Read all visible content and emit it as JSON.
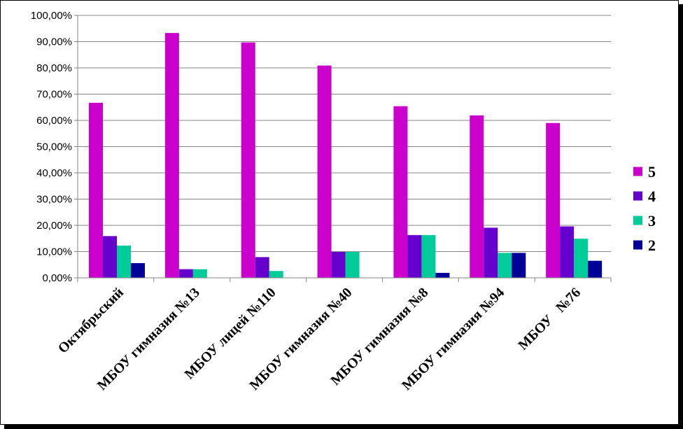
{
  "chart_data": {
    "type": "bar",
    "title": "",
    "xlabel": "",
    "ylabel": "",
    "ylim": [
      0,
      100
    ],
    "grid": true,
    "legend_position": "right",
    "y_ticks": [
      "0,00%",
      "10,00%",
      "20,00%",
      "30,00%",
      "40,00%",
      "50,00%",
      "60,00%",
      "70,00%",
      "80,00%",
      "90,00%",
      "100,00%"
    ],
    "categories": [
      "Октябрьский",
      "МБОУ гимназия №13",
      "МБОУ лицей №110",
      "МБОУ гимназия №40",
      "МБОУ гимназия №8",
      "МБОУ гимназия №94",
      "МБОУ   №76"
    ],
    "series": [
      {
        "name": "5",
        "color": "#cc00cc",
        "values": [
          66.7,
          93.3,
          89.7,
          80.9,
          65.4,
          61.9,
          59.0
        ]
      },
      {
        "name": "4",
        "color": "#6600cc",
        "values": [
          15.9,
          3.3,
          7.9,
          9.9,
          16.3,
          19.1,
          19.6
        ]
      },
      {
        "name": "3",
        "color": "#00cc99",
        "values": [
          12.3,
          3.3,
          2.6,
          9.9,
          16.3,
          9.5,
          14.9
        ]
      },
      {
        "name": "2",
        "color": "#000099",
        "values": [
          5.6,
          0,
          0,
          0,
          1.9,
          9.5,
          6.5
        ]
      }
    ]
  }
}
